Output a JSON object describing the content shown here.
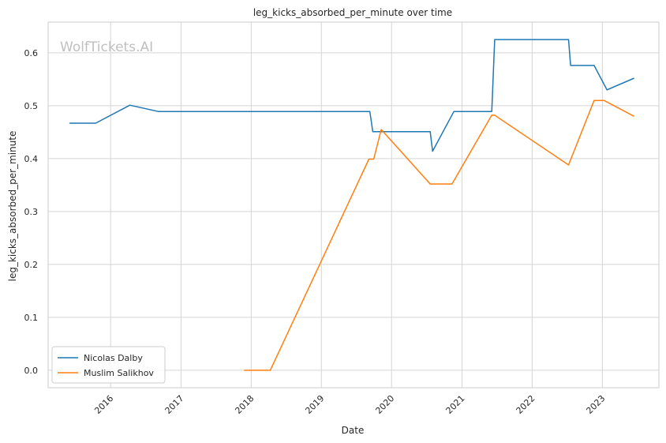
{
  "watermark": "WolfTickets.AI",
  "colors": {
    "grid": "#d5d5d5",
    "frame": "#cccccc",
    "series_1": "#1f77b4",
    "series_2": "#ff7f0e"
  },
  "chart_data": {
    "type": "line",
    "title": "leg_kicks_absorbed_per_minute over time",
    "xlabel": "Date",
    "ylabel": "leg_kicks_absorbed_per_minute",
    "xlim": [
      "2015-02-10",
      "2023-10-22"
    ],
    "ylim": [
      -0.033,
      0.658
    ],
    "x_ticks": [
      "2016",
      "2017",
      "2018",
      "2019",
      "2020",
      "2021",
      "2022",
      "2023"
    ],
    "y_ticks": [
      "0.0",
      "0.1",
      "0.2",
      "0.3",
      "0.4",
      "0.5",
      "0.6"
    ],
    "grid": true,
    "legend_position": "lower-left",
    "series": [
      {
        "name": "Nicolas Dalby",
        "x": [
          "2015-06-01",
          "2015-10-15",
          "2016-04-10",
          "2016-09-05",
          "2019-09-10",
          "2019-09-25",
          "2020-07-20",
          "2020-08-01",
          "2020-11-20",
          "2021-06-05",
          "2021-06-20",
          "2022-07-09",
          "2022-07-20",
          "2022-11-19",
          "2023-01-25",
          "2023-06-15"
        ],
        "values": [
          0.467,
          0.467,
          0.501,
          0.489,
          0.489,
          0.451,
          0.451,
          0.414,
          0.489,
          0.489,
          0.625,
          0.625,
          0.576,
          0.576,
          0.53,
          0.552
        ]
      },
      {
        "name": "Muslim Salikhov",
        "x": [
          "2017-11-25",
          "2018-04-10",
          "2019-09-05",
          "2019-09-30",
          "2019-11-08",
          "2020-07-20",
          "2020-11-10",
          "2021-06-05",
          "2021-06-20",
          "2022-07-09",
          "2022-11-19",
          "2023-01-10",
          "2023-06-15"
        ],
        "values": [
          0.0,
          0.0,
          0.399,
          0.399,
          0.455,
          0.352,
          0.352,
          0.482,
          0.482,
          0.388,
          0.51,
          0.51,
          0.48
        ]
      }
    ]
  }
}
